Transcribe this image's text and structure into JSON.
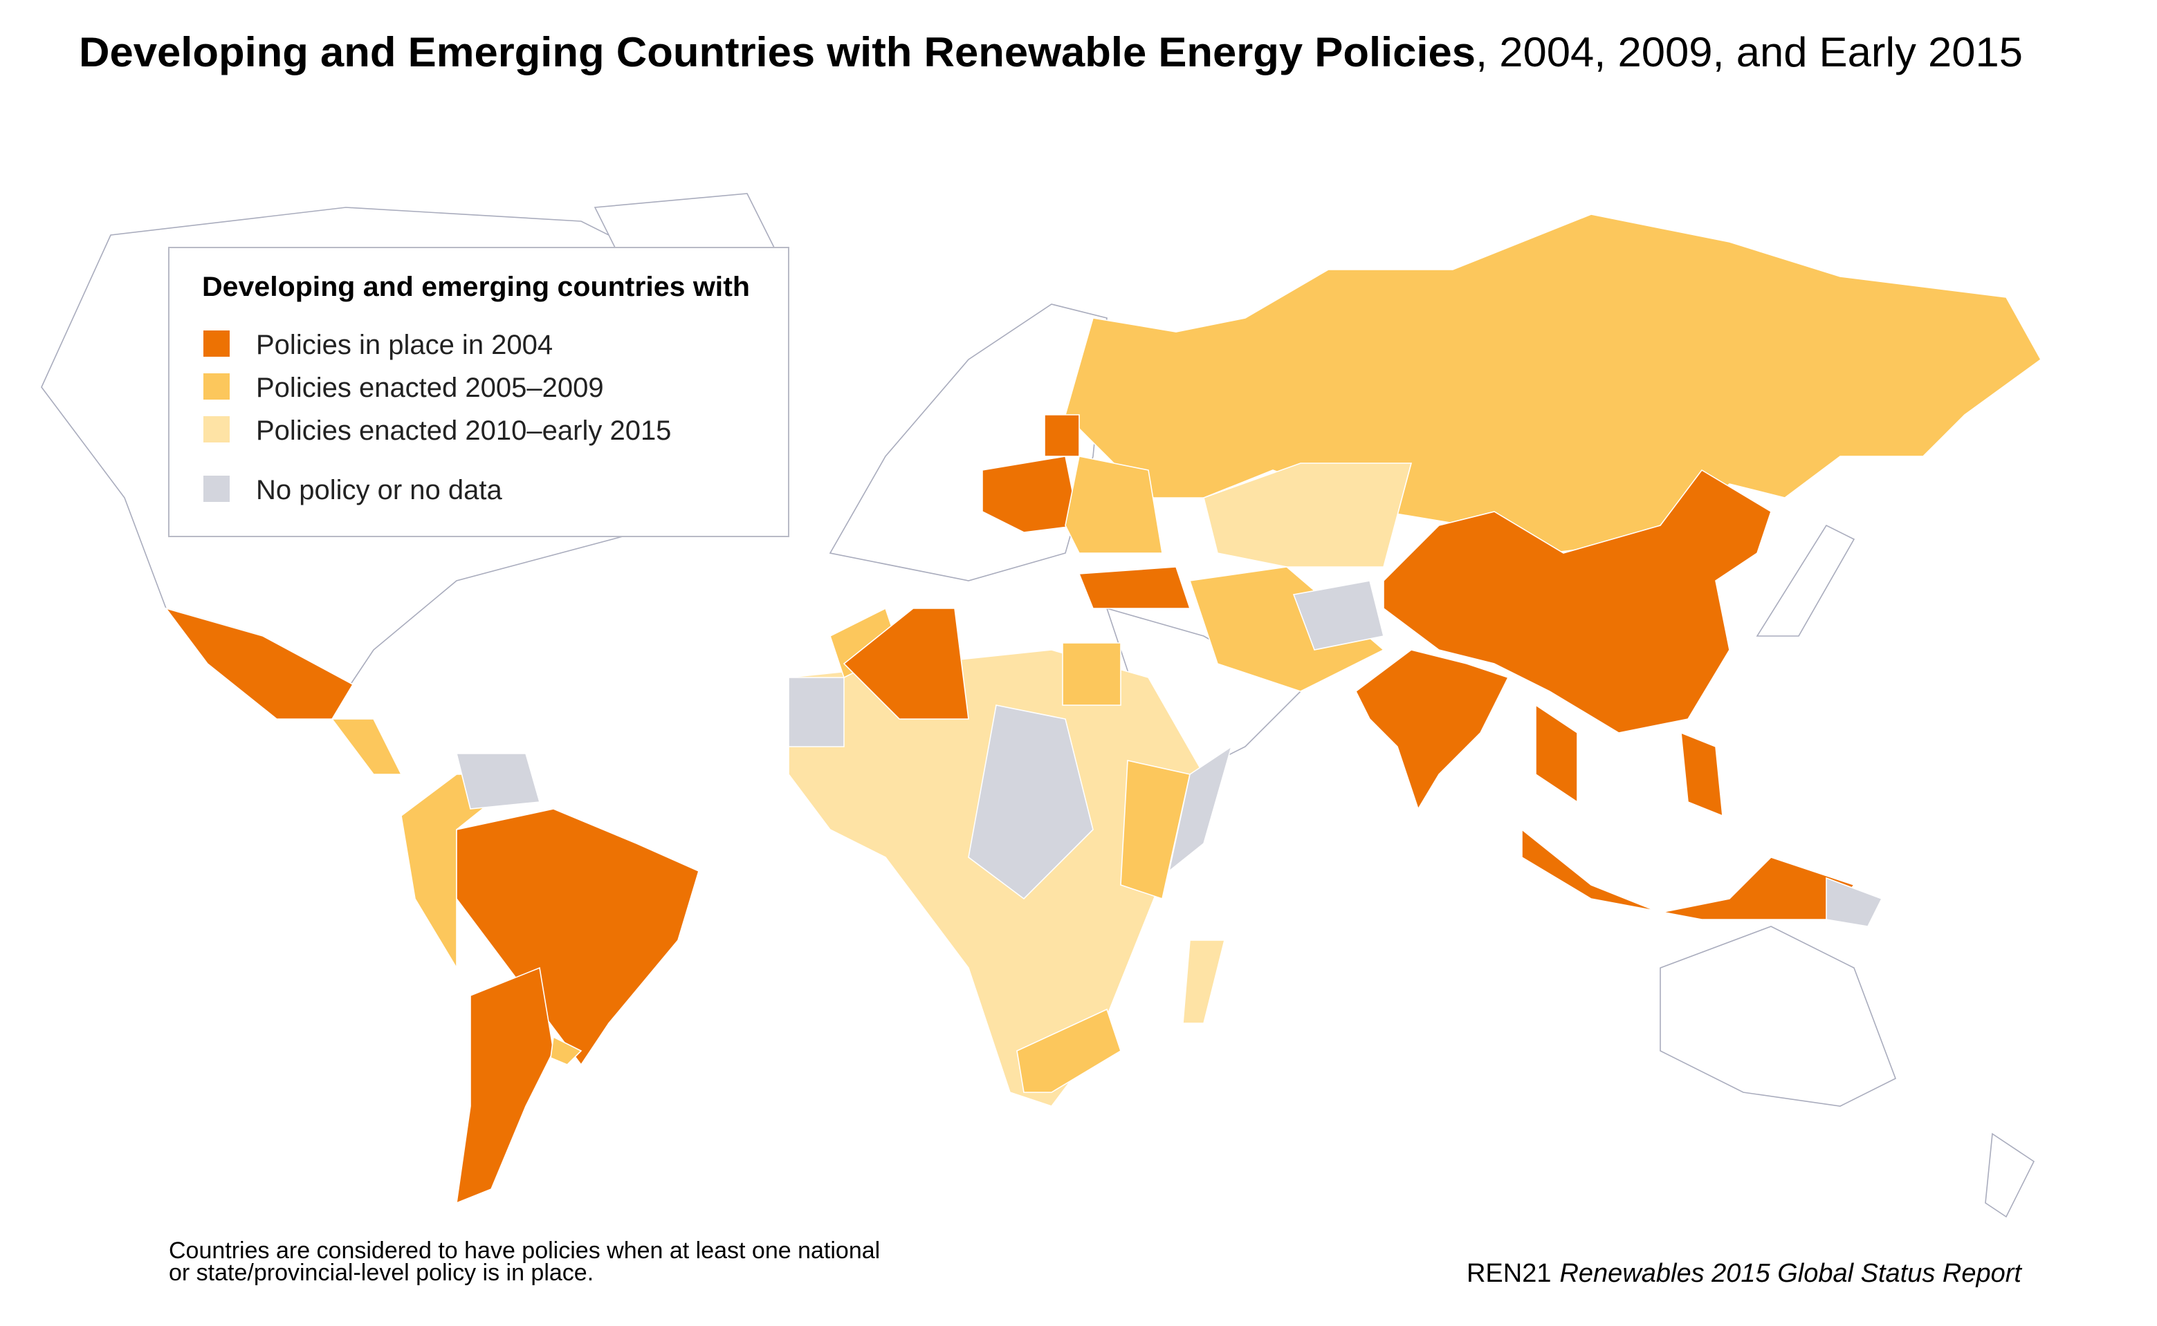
{
  "header": {
    "title_bold": "Developing and Emerging Countries with Renewable Energy Policies",
    "title_rest": ", 2004, 2009, and Early 2015"
  },
  "legend": {
    "title": "Developing and emerging countries with",
    "items": [
      {
        "label": "Policies in place in 2004",
        "color": "#ed7203"
      },
      {
        "label": "Policies enacted 2005–2009",
        "color": "#fcc75c"
      },
      {
        "label": "Policies enacted 2010–early 2015",
        "color": "#fee3a5"
      },
      {
        "label": "No policy or no data",
        "color": "#d3d5dd"
      }
    ]
  },
  "footnote": [
    "Countries are considered to have policies when at least one national",
    "or state/provincial-level policy is in place."
  ],
  "source": {
    "org": "REN21",
    "report": "Renewables 2015 Global Status Report"
  }
}
